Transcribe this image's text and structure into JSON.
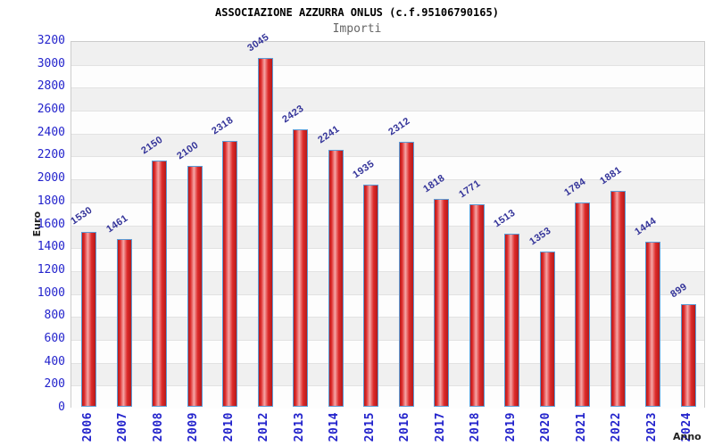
{
  "chart_data": {
    "type": "bar",
    "title": "ASSOCIAZIONE AZZURRA ONLUS (c.f.95106790165)",
    "subtitle": "Importi",
    "xlabel": "Anno",
    "ylabel": "Euro",
    "categories": [
      "2006",
      "2007",
      "2008",
      "2009",
      "2010",
      "2012",
      "2013",
      "2014",
      "2015",
      "2016",
      "2017",
      "2018",
      "2019",
      "2020",
      "2021",
      "2022",
      "2023",
      "2024"
    ],
    "values": [
      1530,
      1461,
      2150,
      2100,
      2318,
      3045,
      2423,
      2241,
      1935,
      2312,
      1818,
      1771,
      1513,
      1353,
      1784,
      1881,
      1444,
      899
    ],
    "ylim": [
      0,
      3200
    ],
    "ytick_step": 200,
    "legend": "none",
    "grid": "horizontal gridlines every 200 with alternating shaded bands",
    "colors": {
      "bar_fill_dark": "#b51a1a",
      "bar_fill_mid": "#dd2a2a",
      "bar_fill_highlight": "#f5a6a6",
      "bar_border": "#5b9cd6",
      "tick_text": "#2323cc",
      "value_label_text": "#333399",
      "title_text": "#000000",
      "subtitle_text": "#666666",
      "band_gray": "#f0f0f0",
      "band_white": "#fdfdfd",
      "gridline": "#e2e2e2",
      "plot_border": "#cccccc"
    }
  }
}
